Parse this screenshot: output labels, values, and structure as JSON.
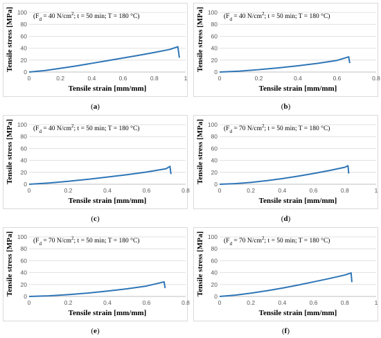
{
  "chart_data": [
    {
      "type": "line",
      "panel_label": "a",
      "annotation": "(F_d = 40 N/cm²; t = 50 min; T = 180 °C)",
      "annotation_parts": {
        "pre": "(F",
        "sub": "d",
        "mid": " = 40 N/cm",
        "sup": "2",
        "post": "; t = 50 min; T = 180 °C)"
      },
      "xlabel": "Tensile strain [mm/mm]",
      "ylabel": "Tensile stress [MPa]",
      "xlim": [
        0,
        1
      ],
      "ylim": [
        0,
        100
      ],
      "xticks": [
        0,
        0.2,
        0.4,
        0.6,
        0.8,
        1
      ],
      "xtick_labels": [
        "0",
        "0.2",
        "0.4",
        "0.6",
        "0.8",
        "1"
      ],
      "yticks": [
        0,
        20,
        40,
        60,
        80,
        100
      ],
      "grid": true,
      "color": "#2E75B6",
      "x": [
        0,
        0.1,
        0.2,
        0.3,
        0.4,
        0.5,
        0.6,
        0.7,
        0.8,
        0.9,
        0.95,
        0.96
      ],
      "y": [
        0,
        2.5,
        6.2,
        10.2,
        14.6,
        19.0,
        23.5,
        28.0,
        32.8,
        38.0,
        42.5,
        24
      ]
    },
    {
      "type": "line",
      "panel_label": "b",
      "annotation_parts": {
        "pre": "(F",
        "sub": "d",
        "mid": " = 40 N/cm",
        "sup": "2",
        "post": "; t = 50 min; T = 180 °C)"
      },
      "xlabel": "Tensile strain [mm/mm]",
      "ylabel": "Tensile stress [MPa]",
      "xlim": [
        0,
        0.8
      ],
      "ylim": [
        0,
        100
      ],
      "xticks": [
        0,
        0.2,
        0.4,
        0.6,
        0.8
      ],
      "xtick_labels": [
        "0",
        "0.2",
        "0.4",
        "0.6",
        "0.8"
      ],
      "yticks": [
        0,
        20,
        40,
        60,
        80,
        100
      ],
      "grid": true,
      "color": "#2E75B6",
      "x": [
        0,
        0.1,
        0.2,
        0.3,
        0.4,
        0.5,
        0.6,
        0.66,
        0.665
      ],
      "y": [
        0,
        1.5,
        4.0,
        7.0,
        10.5,
        14.5,
        19.5,
        25.5,
        15
      ]
    },
    {
      "type": "line",
      "panel_label": "c",
      "annotation_parts": {
        "pre": "(F",
        "sub": "d",
        "mid": " = 40 N/cm",
        "sup": "2",
        "post": "; t = 50 min; T = 180 °C)"
      },
      "xlabel": "Tensile strain [mm/mm]",
      "ylabel": "Tensile stress [MPa]",
      "xlim": [
        0,
        0.8
      ],
      "ylim": [
        0,
        100
      ],
      "xticks": [
        0,
        0.2,
        0.4,
        0.6,
        0.8
      ],
      "xtick_labels": [
        "0",
        "0.2",
        "0.4",
        "0.6",
        "0.8"
      ],
      "yticks": [
        0,
        20,
        40,
        60,
        80,
        100
      ],
      "grid": true,
      "color": "#2E75B6",
      "x": [
        0,
        0.1,
        0.2,
        0.3,
        0.4,
        0.5,
        0.6,
        0.7,
        0.72,
        0.725
      ],
      "y": [
        0,
        2.0,
        5.0,
        8.3,
        12.0,
        16.0,
        20.5,
        26.0,
        30.0,
        17
      ]
    },
    {
      "type": "line",
      "panel_label": "d",
      "annotation_parts": {
        "pre": "(F",
        "sub": "d",
        "mid": " = 70 N/cm",
        "sup": "2",
        "post": "; t = 50 min; T = 180 °C)"
      },
      "xlabel": "Tensile strain [mm/mm]",
      "ylabel": "Tensile stress [MPa]",
      "xlim": [
        0,
        1
      ],
      "ylim": [
        0,
        100
      ],
      "xticks": [
        0,
        0.2,
        0.4,
        0.6,
        0.8,
        1
      ],
      "xtick_labels": [
        "0",
        "0.2",
        "0.4",
        "0.6",
        "0.8",
        "1"
      ],
      "yticks": [
        0,
        20,
        40,
        60,
        80,
        100
      ],
      "grid": true,
      "color": "#2E75B6",
      "x": [
        0,
        0.1,
        0.2,
        0.3,
        0.4,
        0.5,
        0.6,
        0.7,
        0.8,
        0.82,
        0.825
      ],
      "y": [
        0,
        1.0,
        3.0,
        6.0,
        9.5,
        13.5,
        18.0,
        23.0,
        28.5,
        31.0,
        18
      ]
    },
    {
      "type": "line",
      "panel_label": "e",
      "annotation_parts": {
        "pre": "(F",
        "sub": "d",
        "mid": " = 70 N/cm",
        "sup": "2",
        "post": "; t = 50 min; T = 180 °C)"
      },
      "xlabel": "Tensile strain [mm/mm]",
      "ylabel": "Tensile stress [MPa]",
      "xlim": [
        0,
        0.8
      ],
      "ylim": [
        0,
        100
      ],
      "xticks": [
        0,
        0.2,
        0.4,
        0.6,
        0.8
      ],
      "xtick_labels": [
        "0",
        "0.2",
        "0.4",
        "0.6",
        "0.8"
      ],
      "yticks": [
        0,
        20,
        40,
        60,
        80,
        100
      ],
      "grid": true,
      "color": "#2E75B6",
      "x": [
        0,
        0.1,
        0.2,
        0.3,
        0.4,
        0.5,
        0.6,
        0.69,
        0.695
      ],
      "y": [
        0,
        1.0,
        3.0,
        5.7,
        9.0,
        12.8,
        17.5,
        24.5,
        14
      ]
    },
    {
      "type": "line",
      "panel_label": "f",
      "annotation_parts": {
        "pre": "(F",
        "sub": "d",
        "mid": " = 70 N/cm",
        "sup": "2",
        "post": "; t = 50 min; T = 180 °C)"
      },
      "xlabel": "Tensile strain [mm/mm]",
      "ylabel": "Tensile stress [MPa]",
      "xlim": [
        0,
        1
      ],
      "ylim": [
        0,
        100
      ],
      "xticks": [
        0,
        0.2,
        0.4,
        0.6,
        0.8,
        1
      ],
      "xtick_labels": [
        "0",
        "0.2",
        "0.4",
        "0.6",
        "0.8",
        "1"
      ],
      "yticks": [
        0,
        20,
        40,
        60,
        80,
        100
      ],
      "grid": true,
      "color": "#2E75B6",
      "x": [
        0,
        0.1,
        0.2,
        0.3,
        0.4,
        0.5,
        0.6,
        0.7,
        0.8,
        0.84,
        0.845
      ],
      "y": [
        0,
        2.2,
        5.5,
        9.5,
        14.0,
        19.0,
        24.5,
        30.0,
        36.0,
        39.5,
        24
      ]
    }
  ]
}
